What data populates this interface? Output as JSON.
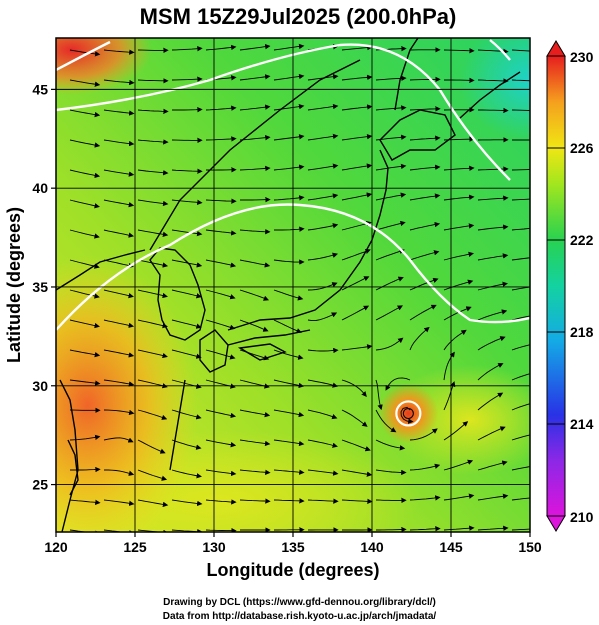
{
  "chart_data": {
    "type": "heatmap",
    "title": "MSM 15Z29Jul2025 (200.0hPa)",
    "xlabel": "Longitude (degrees)",
    "ylabel": "Latitude  (degrees)",
    "xlim": [
      120,
      150
    ],
    "ylim": [
      22.6,
      47.6
    ],
    "x_ticks": [
      120,
      125,
      130,
      135,
      140,
      145,
      150
    ],
    "y_ticks": [
      25,
      30,
      35,
      40,
      45
    ],
    "x_tick_labels": [
      "120",
      "125",
      "130",
      "135",
      "140",
      "145",
      "150"
    ],
    "y_tick_labels": [
      "25",
      "30",
      "35",
      "40",
      "45"
    ],
    "colorbar": {
      "min": 210,
      "max": 230,
      "ticks": [
        210,
        214,
        218,
        222,
        226,
        230
      ],
      "tick_labels": [
        "210",
        "214",
        "218",
        "222",
        "226",
        "230"
      ],
      "colors": [
        "#d20fd2",
        "#2828e6",
        "#19c8e6",
        "#14d28c",
        "#3cdc3c",
        "#b4e61e",
        "#f0e614",
        "#f5a51e",
        "#f05028",
        "#e61e1e"
      ]
    },
    "features": {
      "typhoon_center": {
        "lon": 142.3,
        "lat": 28.6
      },
      "warm_region_west": {
        "lon": 122,
        "lat": 29
      },
      "warm_corner_nw": {
        "lon": 121,
        "lat": 47
      }
    },
    "grid": true,
    "streamlines": true,
    "contours_color": "#ffffff"
  },
  "footer": {
    "line1": "Drawing by DCL (https://www.gfd-dennou.org/library/dcl/)",
    "line2": "Data from http://database.rish.kyoto-u.ac.jp/arch/jmadata/"
  }
}
